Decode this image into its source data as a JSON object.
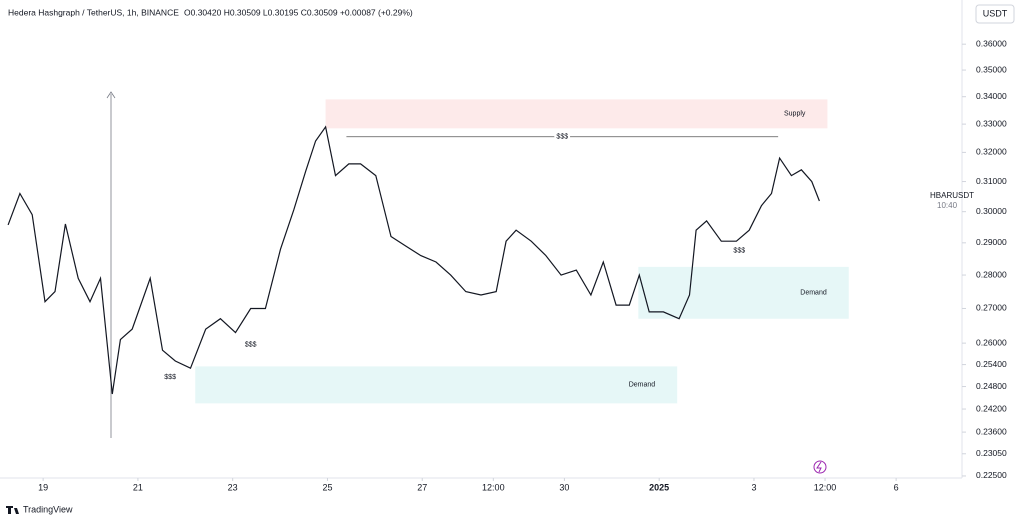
{
  "header": {
    "symbol": "Hedera Hashgraph / TetherUS, 1h, BINANCE",
    "ohlc": "O0.30420 H0.30509 L0.30195 C0.30509 +0.00087 (+0.29%)",
    "currency": "USDT"
  },
  "chart_data": {
    "type": "line",
    "x": [
      18.26,
      18.51,
      18.77,
      19.04,
      19.25,
      19.47,
      19.74,
      19.99,
      20.21,
      20.46,
      20.63,
      20.88,
      21.26,
      21.52,
      21.79,
      22.11,
      22.43,
      22.74,
      23.06,
      23.38,
      23.69,
      24.01,
      24.29,
      24.54,
      24.75,
      24.96,
      25.17,
      25.45,
      25.7,
      26.02,
      26.34,
      26.65,
      26.97,
      27.29,
      27.6,
      27.92,
      28.24,
      28.56,
      28.77,
      28.98,
      29.3,
      29.61,
      29.93,
      30.25,
      30.56,
      30.82,
      31.09,
      31.37,
      31.58,
      31.79,
      32.09,
      32.42,
      32.64,
      32.78,
      33.0,
      33.31,
      33.63,
      33.9,
      34.16,
      34.37,
      34.54,
      34.79,
      35.0,
      35.22,
      35.38
    ],
    "series": [
      {
        "name": "HBARUSDT",
        "color": "#131722",
        "values": [
          0.2957,
          0.306,
          0.299,
          0.272,
          0.275,
          0.296,
          0.279,
          0.272,
          0.279,
          0.246,
          0.261,
          0.264,
          0.279,
          0.258,
          0.255,
          0.253,
          0.264,
          0.267,
          0.263,
          0.27,
          0.27,
          0.288,
          0.3006,
          0.3135,
          0.324,
          0.329,
          0.312,
          0.316,
          0.316,
          0.312,
          0.292,
          0.289,
          0.286,
          0.284,
          0.28,
          0.275,
          0.274,
          0.275,
          0.2905,
          0.294,
          0.2905,
          0.286,
          0.28,
          0.2815,
          0.274,
          0.284,
          0.271,
          0.271,
          0.28,
          0.269,
          0.269,
          0.267,
          0.274,
          0.294,
          0.297,
          0.2905,
          0.2905,
          0.294,
          0.302,
          0.306,
          0.318,
          0.312,
          0.314,
          0.31,
          0.3035
        ]
      }
    ],
    "xlim": [
      18.09,
      38.39
    ],
    "ylim": [
      0.2245,
      0.3688
    ],
    "log_scale": true,
    "xticks": [
      19,
      21,
      23,
      25,
      27,
      {
        "value": 28.5,
        "label": "12:00"
      },
      30,
      {
        "value": 32,
        "label": "2025"
      },
      {
        "value": 34,
        "label": "3"
      },
      {
        "value": 35.5,
        "label": "12:00"
      },
      {
        "value": 37,
        "label": "6"
      }
    ],
    "yticks": [
      {
        "value": 0.36,
        "label": "0.36000"
      },
      {
        "value": 0.35,
        "label": "0.35000"
      },
      {
        "value": 0.34,
        "label": "0.34000"
      },
      {
        "value": 0.33,
        "label": "0.33000"
      },
      {
        "value": 0.32,
        "label": "0.32000"
      },
      {
        "value": 0.31,
        "label": "0.31000"
      },
      {
        "value": 0.3,
        "label": "0.30000"
      },
      {
        "value": 0.29,
        "label": "0.29000"
      },
      {
        "value": 0.28,
        "label": "0.28000"
      },
      {
        "value": 0.27,
        "label": "0.27000"
      },
      {
        "value": 0.26,
        "label": "0.26000"
      },
      {
        "value": 0.254,
        "label": "0.25400"
      },
      {
        "value": 0.248,
        "label": "0.24800"
      },
      {
        "value": 0.242,
        "label": "0.24200"
      },
      {
        "value": 0.236,
        "label": "0.23600"
      },
      {
        "value": 0.2305,
        "label": "0.23050"
      },
      {
        "value": 0.225,
        "label": "0.22500"
      }
    ],
    "zones": [
      {
        "label": "Supply",
        "x": [
          24.96,
          35.55
        ],
        "y": [
          0.3285,
          0.339
        ],
        "color": "#fdeaea"
      },
      {
        "label": "Demand",
        "x": [
          31.56,
          36.0
        ],
        "y": [
          0.267,
          0.2825
        ],
        "color": "#e6f7f7"
      },
      {
        "label": "Demand",
        "x": [
          22.21,
          32.38
        ],
        "y": [
          0.2435,
          0.2535
        ],
        "color": "#e6f7f7"
      }
    ],
    "liquidity": {
      "label": "$$$",
      "x": [
        25.4,
        34.51
      ],
      "y": 0.3255
    },
    "annotations": [
      {
        "text": "$$$",
        "x": 21.68,
        "y": 0.2505
      },
      {
        "text": "$$$",
        "x": 23.38,
        "y": 0.2595
      },
      {
        "text": "$$$",
        "x": 33.69,
        "y": 0.2875
      }
    ],
    "countdown": "10:40"
  },
  "footer": {
    "brand": "TradingView"
  }
}
